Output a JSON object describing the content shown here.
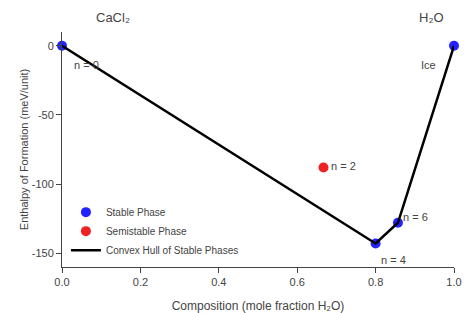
{
  "chart_data": {
    "type": "scatter",
    "xlabel": "Composition (mole fraction H₂O)",
    "ylabel": "Enthalpy of Formation (meV/unit)",
    "series": [
      {
        "name": "Stable Phase",
        "type": "scatter",
        "marker": "circle",
        "color": "#2222ff",
        "x": [
          0.0,
          0.8,
          0.857,
          1.0
        ],
        "values": [
          0.0,
          -143.0,
          -128.0,
          0.0
        ]
      },
      {
        "name": "Semistable Phase",
        "type": "scatter",
        "marker": "circle",
        "color": "#ee2222",
        "x": [
          0.667
        ],
        "values": [
          -88.0
        ]
      },
      {
        "name": "Convex Hull of Stable Phases",
        "type": "line",
        "line_style": "solid",
        "color": "#000000",
        "x": [
          0.0,
          0.8,
          0.857,
          1.0
        ],
        "values": [
          0.0,
          -143.0,
          -128.0,
          0.0
        ]
      }
    ],
    "annotations": [
      {
        "text": "n = 0",
        "x": 0.025,
        "y": -8
      },
      {
        "text": "n = 4",
        "x": 0.808,
        "y": -149
      },
      {
        "text": "n = 6",
        "x": 0.865,
        "y": -124
      },
      {
        "text": "n = 2",
        "x": 0.68,
        "y": -87
      },
      {
        "text": "Ice",
        "x": 0.958,
        "y": -8
      }
    ],
    "top_labels": [
      "CaCl₂",
      "H₂O"
    ],
    "xlim": [
      0.0,
      1.0
    ],
    "ylim": [
      -160,
      10
    ],
    "xticks": [
      {
        "value": 0.0,
        "label": "0.0"
      },
      0.2,
      0.4,
      0.6,
      0.8,
      {
        "value": 1.0,
        "label": "1.0"
      }
    ],
    "yticks": [
      0,
      -50,
      -100,
      -150
    ],
    "grid": false,
    "legend": "lower left"
  }
}
